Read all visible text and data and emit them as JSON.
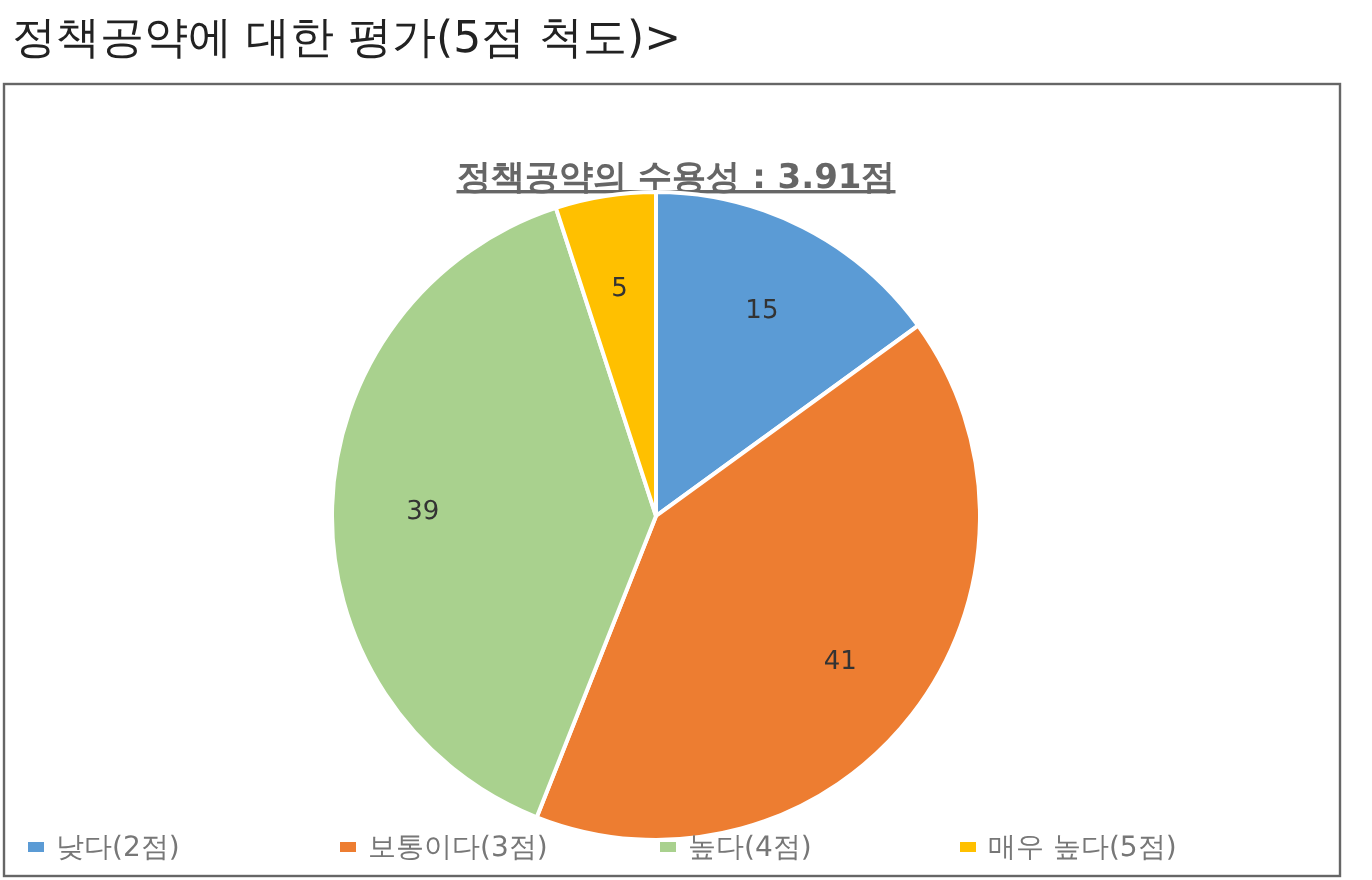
{
  "chart_data": {
    "type": "pie",
    "title": "정책공약에 대한 평가(5점 척도)>",
    "subtitle": "정책공약의 수용성 : 3.91점",
    "categories": [
      "낮다(2점)",
      "보통이다(3점)",
      "높다(4점)",
      "매우 높다(5점)"
    ],
    "values": [
      15,
      41,
      39,
      5
    ],
    "colors": [
      "#5b9bd5",
      "#ed7d31",
      "#a9d18e",
      "#ffc000"
    ],
    "data_labels": true,
    "legend": "bottom"
  }
}
